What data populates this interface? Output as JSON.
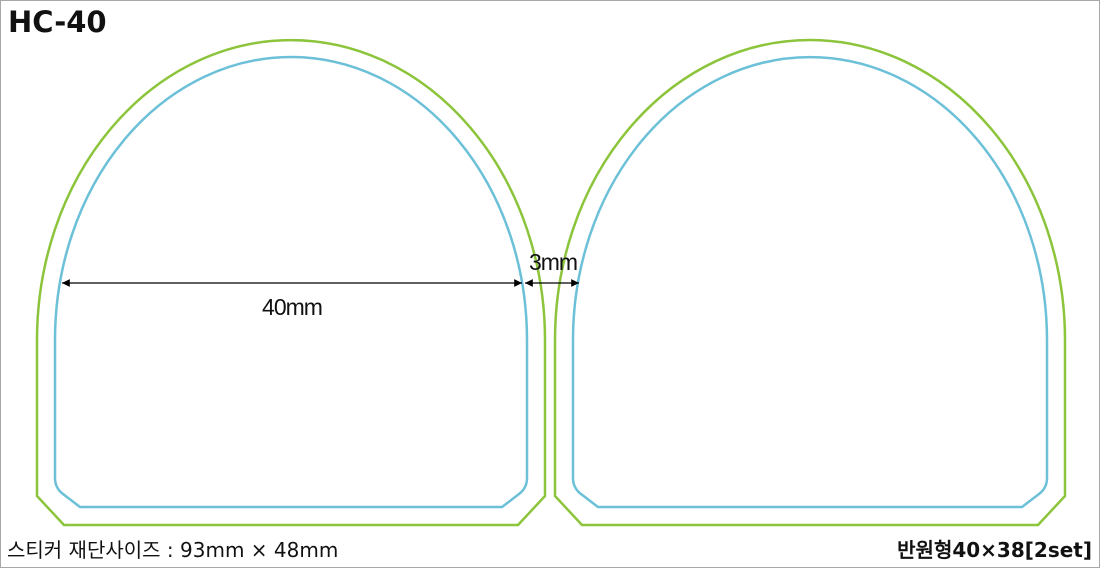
{
  "title": "HC-40",
  "dimensions": {
    "width_label": "40mm",
    "gap_label": "3mm"
  },
  "footer": {
    "cut_size": "스티커 재단사이즈 : 93mm × 48mm",
    "product": "반원형40×38[2set]"
  },
  "colors": {
    "cut_line": "#8cc43c",
    "safe_line": "#6cc0d8",
    "border": "#a8a8a8",
    "dimension_line": "#000000"
  }
}
